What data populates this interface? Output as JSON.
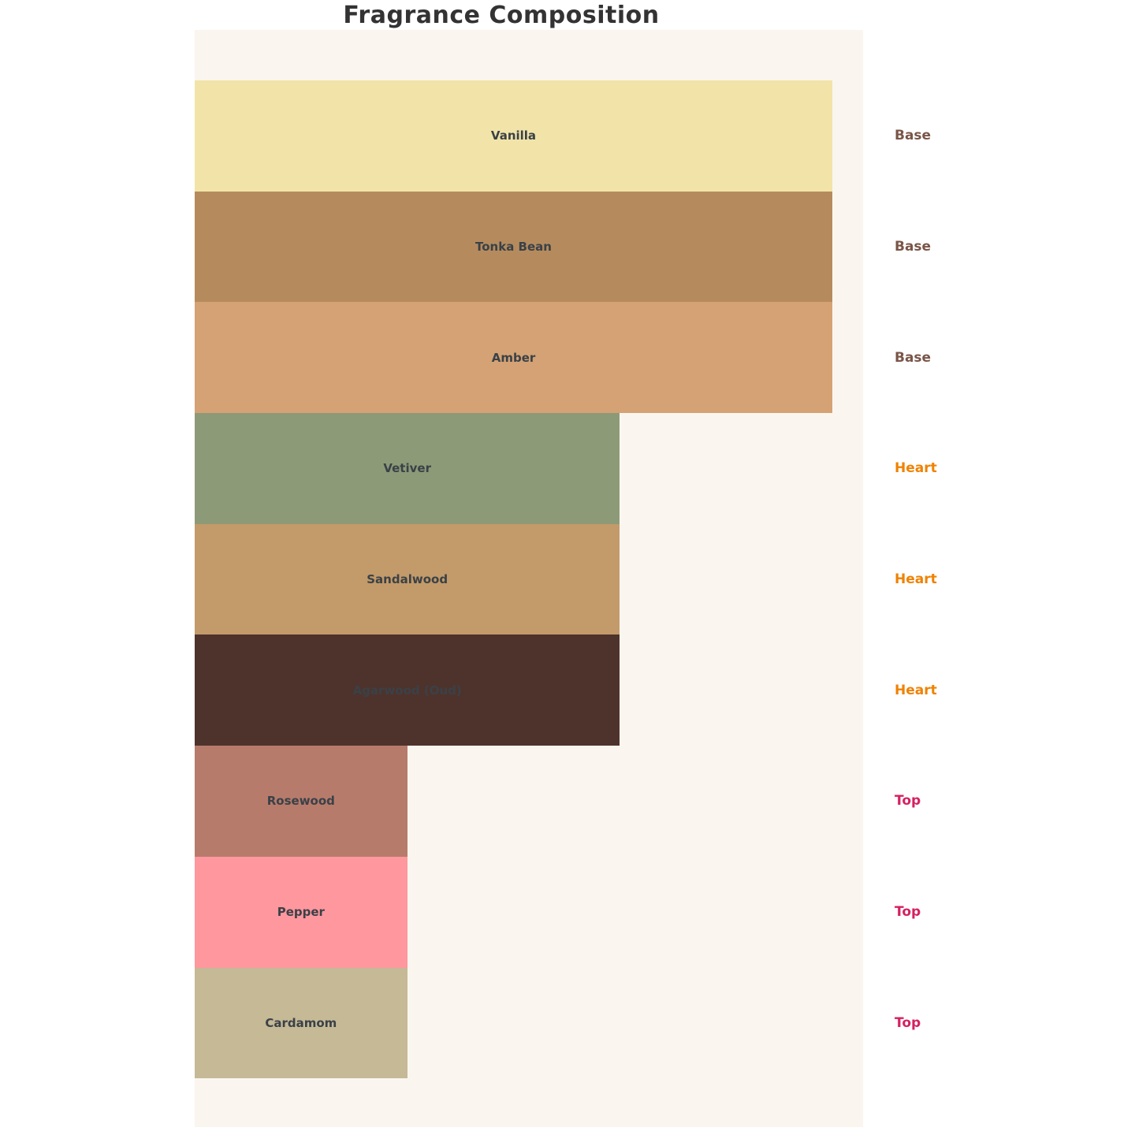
{
  "title": "Fragrance Composition",
  "panel_bg": "#faf6ef",
  "chart_data": {
    "type": "bar",
    "orientation": "horizontal",
    "title": "Fragrance Composition",
    "categories": [
      "Vanilla",
      "Tonka Bean",
      "Amber",
      "Vetiver",
      "Sandalwood",
      "Agarwood (Oud)",
      "Rosewood",
      "Pepper",
      "Cardamom"
    ],
    "series": [
      {
        "name": "relative-bar-length",
        "values": [
          3,
          3,
          3,
          2,
          2,
          2,
          1,
          1,
          1
        ]
      }
    ],
    "group_labels": [
      "Base",
      "Base",
      "Base",
      "Heart",
      "Heart",
      "Heart",
      "Top",
      "Top",
      "Top"
    ],
    "xlim": [
      0,
      3.15
    ],
    "grid": false,
    "legend_position": "right-of-plot"
  },
  "group_colors": {
    "Base": "#7a5548",
    "Heart": "#ef8200",
    "Top": "#d5205f"
  },
  "bars": [
    {
      "label": "Vanilla",
      "group": "Base",
      "color": "#f2e4a8",
      "width_pct": 95.4
    },
    {
      "label": "Tonka Bean",
      "group": "Base",
      "color": "#b58b5e",
      "width_pct": 95.4
    },
    {
      "label": "Amber",
      "group": "Base",
      "color": "#d4a274",
      "width_pct": 95.4
    },
    {
      "label": "Vetiver",
      "group": "Heart",
      "color": "#8d9a78",
      "width_pct": 63.6
    },
    {
      "label": "Sandalwood",
      "group": "Heart",
      "color": "#c39a69",
      "width_pct": 63.6
    },
    {
      "label": "Agarwood (Oud)",
      "group": "Heart",
      "color": "#4e332c",
      "width_pct": 63.6
    },
    {
      "label": "Rosewood",
      "group": "Top",
      "color": "#b77b6c",
      "width_pct": 31.8
    },
    {
      "label": "Pepper",
      "group": "Top",
      "color": "#ff979e",
      "width_pct": 31.8
    },
    {
      "label": "Cardamom",
      "group": "Top",
      "color": "#c5b996",
      "width_pct": 31.8
    }
  ]
}
